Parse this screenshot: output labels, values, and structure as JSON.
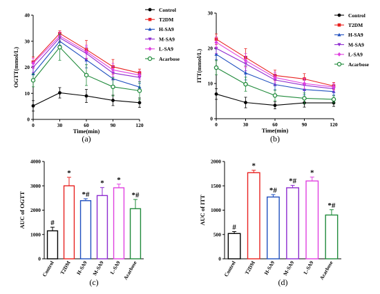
{
  "colors": {
    "Control": "#000000",
    "T2DM": "#e8211f",
    "H-SA9": "#1f4fbf",
    "M-SA9": "#8e2ad0",
    "L-SA9": "#e040e0",
    "Acarbose": "#1f8a3a"
  },
  "chart_data": [
    {
      "id": "a",
      "type": "line",
      "caption": "(a)",
      "xlabel": "Time(min)",
      "ylabel": "OGTT(mmol/L)",
      "x": [
        0,
        30,
        60,
        90,
        120
      ],
      "xticks": [
        "0",
        "30",
        "60",
        "90",
        "120"
      ],
      "xlim": [
        0,
        120
      ],
      "ylim": [
        0,
        40
      ],
      "yticks": [
        "0",
        "10",
        "20",
        "30",
        "40"
      ],
      "legend": "right",
      "series": [
        {
          "name": "Control",
          "marker": "circle",
          "values": [
            5.2,
            10.2,
            9.0,
            7.3,
            6.4
          ],
          "err": [
            2.0,
            2.0,
            2.5,
            2.0,
            1.8
          ]
        },
        {
          "name": "T2DM",
          "marker": "square",
          "values": [
            22.0,
            33.0,
            26.8,
            20.2,
            17.8
          ],
          "err": [
            2.0,
            1.0,
            3.5,
            2.8,
            1.5
          ]
        },
        {
          "name": "H-SA9",
          "marker": "triangle-up",
          "values": [
            17.5,
            30.0,
            22.8,
            15.6,
            12.4
          ],
          "err": [
            2.0,
            1.5,
            3.0,
            2.5,
            1.5
          ]
        },
        {
          "name": "M-SA9",
          "marker": "triangle-down",
          "values": [
            20.0,
            31.3,
            25.3,
            17.8,
            16.1
          ],
          "err": [
            2.0,
            1.5,
            2.5,
            2.5,
            1.5
          ]
        },
        {
          "name": "L-SA9",
          "marker": "diamond",
          "values": [
            21.5,
            32.0,
            26.0,
            19.0,
            17.0
          ],
          "err": [
            2.0,
            1.5,
            2.5,
            2.5,
            1.5
          ]
        },
        {
          "name": "Acarbose",
          "marker": "circle-open",
          "values": [
            15.0,
            27.7,
            17.0,
            12.5,
            11.0
          ],
          "err": [
            2.5,
            5.0,
            4.0,
            3.5,
            3.5
          ]
        }
      ]
    },
    {
      "id": "b",
      "type": "line",
      "caption": "(b)",
      "xlabel": "Time(min)",
      "ylabel": "ITT(mmol/L)",
      "x": [
        0,
        30,
        60,
        90,
        120
      ],
      "xticks": [
        "0",
        "30",
        "60",
        "90",
        "120"
      ],
      "xlim": [
        0,
        120
      ],
      "ylim": [
        0,
        30
      ],
      "yticks": [
        "0",
        "10",
        "20",
        "30"
      ],
      "legend": "right",
      "series": [
        {
          "name": "Control",
          "marker": "circle",
          "values": [
            7.0,
            4.6,
            3.8,
            4.5,
            4.5
          ],
          "err": [
            1.5,
            1.5,
            1.0,
            1.2,
            1.0
          ]
        },
        {
          "name": "T2DM",
          "marker": "square",
          "values": [
            22.6,
            17.4,
            12.3,
            11.3,
            9.3
          ],
          "err": [
            1.5,
            2.5,
            1.5,
            1.5,
            1.0
          ]
        },
        {
          "name": "H-SA9",
          "marker": "triangle-up",
          "values": [
            18.3,
            13.0,
            9.7,
            8.3,
            7.7
          ],
          "err": [
            1.5,
            2.0,
            1.5,
            1.5,
            1.0
          ]
        },
        {
          "name": "M-SA9",
          "marker": "triangle-down",
          "values": [
            20.0,
            15.6,
            11.0,
            9.5,
            8.5
          ],
          "err": [
            1.5,
            2.0,
            1.5,
            1.5,
            1.0
          ]
        },
        {
          "name": "L-SA9",
          "marker": "diamond",
          "values": [
            21.7,
            16.5,
            11.7,
            10.0,
            9.0
          ],
          "err": [
            1.5,
            2.0,
            1.5,
            1.5,
            1.0
          ]
        },
        {
          "name": "Acarbose",
          "marker": "circle-open",
          "values": [
            14.5,
            9.8,
            6.6,
            5.8,
            5.5
          ],
          "err": [
            2.0,
            2.0,
            1.5,
            1.5,
            1.0
          ]
        }
      ]
    },
    {
      "id": "c",
      "type": "bar",
      "caption": "(c)",
      "ylabel": "AUC of OGTT",
      "categories": [
        "Control",
        "T2DM",
        "H-SA9",
        "M-SA9",
        "L-SA9",
        "Acarbose"
      ],
      "values": [
        1150,
        3000,
        2390,
        2600,
        2920,
        2060
      ],
      "err": [
        150,
        350,
        80,
        330,
        150,
        380
      ],
      "sig": [
        "#",
        "*",
        "*#",
        "*",
        "*",
        "*#"
      ],
      "ylim": [
        0,
        4000
      ],
      "yticks": [
        "0",
        "1000",
        "2000",
        "3000",
        "4000"
      ]
    },
    {
      "id": "d",
      "type": "bar",
      "caption": "(d)",
      "ylabel": "AUC of ITT",
      "categories": [
        "Control",
        "T2DM",
        "H-SA9",
        "M-SA9",
        "L-SA9",
        "Acarbose"
      ],
      "values": [
        520,
        1770,
        1270,
        1460,
        1600,
        900
      ],
      "err": [
        40,
        50,
        50,
        50,
        80,
        110
      ],
      "sig": [
        "#",
        "*",
        "*#",
        "*#",
        "*",
        "*#"
      ],
      "ylim": [
        0,
        2000
      ],
      "yticks": [
        "0",
        "500",
        "1000",
        "1500",
        "2000"
      ]
    }
  ]
}
